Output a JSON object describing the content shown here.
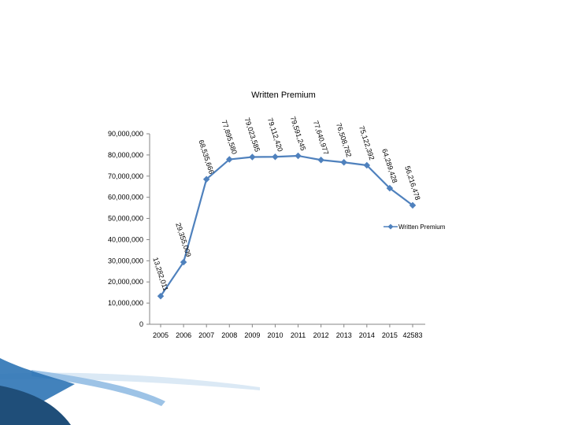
{
  "chart_data": {
    "type": "line",
    "title": "Written Premium",
    "xlabel": "",
    "ylabel": "",
    "categories": [
      "2005",
      "2006",
      "2007",
      "2008",
      "2009",
      "2010",
      "2011",
      "2012",
      "2013",
      "2014",
      "2015",
      "42583"
    ],
    "y_ticks": [
      "0",
      "10,000,000",
      "20,000,000",
      "30,000,000",
      "40,000,000",
      "50,000,000",
      "60,000,000",
      "70,000,000",
      "80,000,000",
      "90,000,000"
    ],
    "ylim": [
      0,
      90000000
    ],
    "grid": false,
    "legend_position": "right",
    "series": [
      {
        "name": "Written Premium",
        "color": "#4f81bd",
        "x": [
          "2005",
          "2006",
          "2007",
          "2008",
          "2009",
          "2010",
          "2011",
          "2012",
          "2013",
          "2014",
          "2015",
          "42583"
        ],
        "values": [
          13282011,
          29355009,
          68535666,
          77895580,
          79023585,
          79112420,
          79591245,
          77640977,
          76508782,
          75122392,
          64289428,
          56216478
        ],
        "labels": [
          "13,282,011",
          "29,355,009",
          "68,535,666",
          "77,895,580",
          "79,023,585",
          "79,112,420",
          "79,591,245",
          "77,640,977",
          "76,508,782",
          "75,122,392",
          "64,289,428",
          "56,216,478"
        ]
      }
    ]
  },
  "decoration": {
    "swoosh_colors": [
      "#2e74b5",
      "#9dc3e6",
      "#dbe9f5"
    ]
  }
}
